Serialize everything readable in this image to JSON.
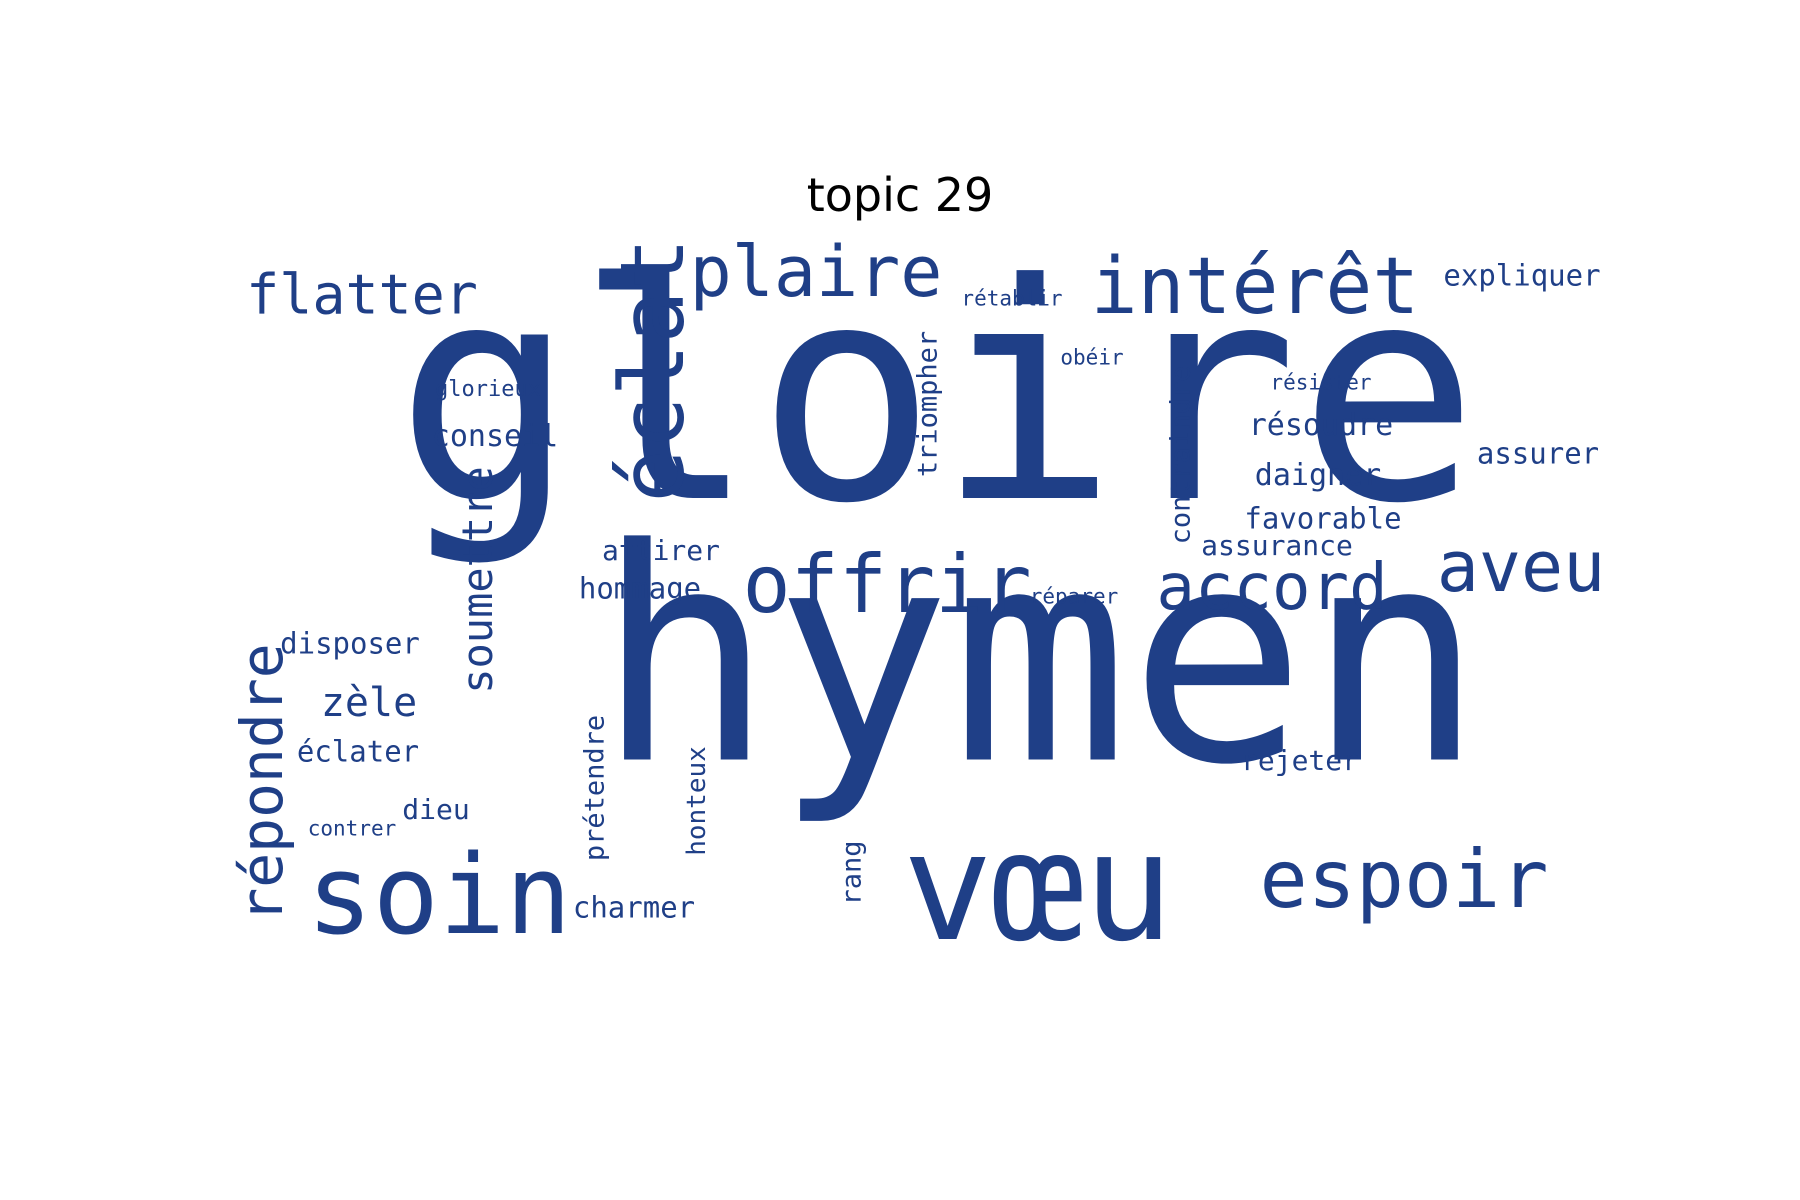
{
  "figure": {
    "title": "topic 29",
    "word_color": "#1f3f87",
    "words": [
      {
        "text": "gloire"
      },
      {
        "text": "hymen"
      },
      {
        "text": "vœu"
      },
      {
        "text": "soin"
      },
      {
        "text": "espoir"
      },
      {
        "text": "offrir"
      },
      {
        "text": "accord"
      },
      {
        "text": "aveu"
      },
      {
        "text": "intérêt"
      },
      {
        "text": "plaire"
      },
      {
        "text": "flatter"
      },
      {
        "text": "éclat"
      },
      {
        "text": "répondre"
      },
      {
        "text": "soumettre"
      },
      {
        "text": "expliquer"
      },
      {
        "text": "rétablir"
      },
      {
        "text": "obéir"
      },
      {
        "text": "résister"
      },
      {
        "text": "résoudre"
      },
      {
        "text": "assurer"
      },
      {
        "text": "daigner"
      },
      {
        "text": "favorable"
      },
      {
        "text": "assurance"
      },
      {
        "text": "contraindre"
      },
      {
        "text": "triompher"
      },
      {
        "text": "glorieux"
      },
      {
        "text": "conseil"
      },
      {
        "text": "attirer"
      },
      {
        "text": "hommage"
      },
      {
        "text": "réparer"
      },
      {
        "text": "disposer"
      },
      {
        "text": "zèle"
      },
      {
        "text": "éclater"
      },
      {
        "text": "dieu"
      },
      {
        "text": "contrer"
      },
      {
        "text": "prétendre"
      },
      {
        "text": "honteux"
      },
      {
        "text": "rang"
      },
      {
        "text": "charmer"
      },
      {
        "text": "rejeter"
      }
    ]
  }
}
